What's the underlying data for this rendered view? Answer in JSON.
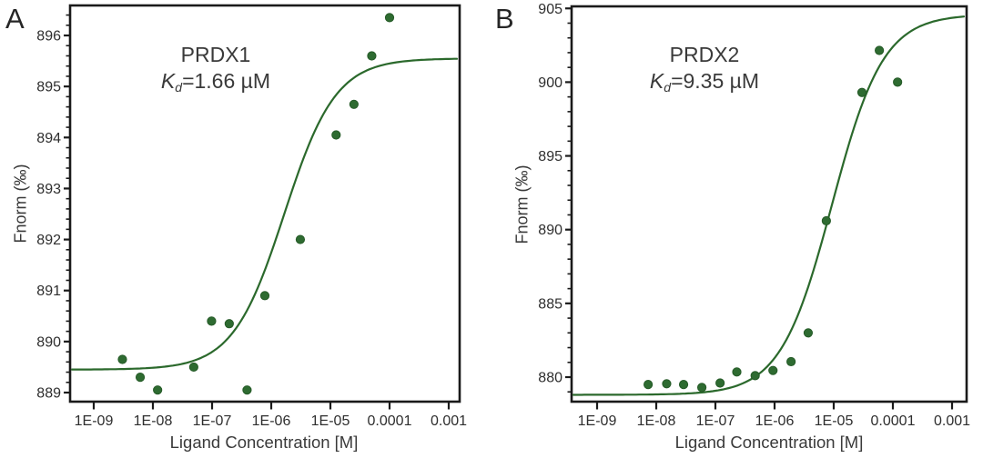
{
  "figure": {
    "colors": {
      "point_green": "#2e6b31",
      "curve_green": "#2b692c",
      "axis_black": "#1a1a1a",
      "text_gray": "#3a3a3a"
    }
  },
  "chart_data": [
    {
      "type": "scatter",
      "panel": "A",
      "title": "PRDX1",
      "kd_annotation": {
        "k": "K",
        "sub": "d",
        "rest": "=1.66 µM"
      },
      "xlabel": "Ligand Concentration [M]",
      "ylabel": "Fnorm (‰)",
      "x_scale": "log",
      "x_ticks": [
        "1E-09",
        "1E-08",
        "1E-07",
        "1E-06",
        "1E-05",
        "0.0001",
        "0.001"
      ],
      "x_tick_logs": [
        -9,
        -8,
        -7,
        -6,
        -5,
        -4,
        -3
      ],
      "xlim_log": [
        -9.4,
        -2.81
      ],
      "ylim": [
        888.8,
        896.6
      ],
      "y_major_ticks": [
        889,
        890,
        891,
        892,
        893,
        894,
        895,
        896
      ],
      "y_minor_step": 0.2,
      "points": {
        "x": [
          3.05e-09,
          6.1e-09,
          1.2e-08,
          4.9e-08,
          9.8e-08,
          1.95e-07,
          3.9e-07,
          7.8e-07,
          3.1e-06,
          1.25e-05,
          2.5e-05,
          5e-05,
          0.0001
        ],
        "y": [
          889.65,
          889.3,
          889.05,
          889.5,
          890.4,
          890.35,
          889.05,
          890.9,
          892.0,
          894.05,
          894.65,
          895.6,
          896.35
        ]
      },
      "fit_curve": {
        "model": "one_site_binding",
        "baseline": 889.45,
        "amplitude": 6.1,
        "kd_molar": 1.66e-06
      }
    },
    {
      "type": "scatter",
      "panel": "B",
      "title": "PRDX2",
      "kd_annotation": {
        "k": "K",
        "sub": "d",
        "rest": "=9.35 µM"
      },
      "xlabel": "Ligand Concentration [M]",
      "ylabel": "Fnorm (‰)",
      "x_scale": "log",
      "x_ticks": [
        "1E-09",
        "1E-08",
        "1E-07",
        "1E-06",
        "1E-05",
        "0.0001",
        "0.001"
      ],
      "x_tick_logs": [
        -9,
        -8,
        -7,
        -6,
        -5,
        -4,
        -3
      ],
      "xlim_log": [
        -9.43,
        -2.75
      ],
      "ylim": [
        878.3,
        905.1
      ],
      "y_major_ticks": [
        880,
        885,
        890,
        895,
        900,
        905
      ],
      "y_minor_step": 1,
      "points": {
        "x": [
          7.3e-09,
          1.5e-08,
          2.9e-08,
          5.9e-08,
          1.2e-07,
          2.3e-07,
          4.7e-07,
          9.4e-07,
          1.9e-06,
          3.7e-06,
          7.5e-06,
          3e-05,
          5.9e-05,
          0.00012
        ],
        "y": [
          879.5,
          879.55,
          879.5,
          879.3,
          879.6,
          880.35,
          880.1,
          880.45,
          881.05,
          883.0,
          890.6,
          899.3,
          902.15,
          900.0
        ]
      },
      "fit_curve": {
        "model": "one_site_binding",
        "baseline": 878.8,
        "amplitude": 25.8,
        "kd_molar": 9.35e-06
      }
    }
  ]
}
